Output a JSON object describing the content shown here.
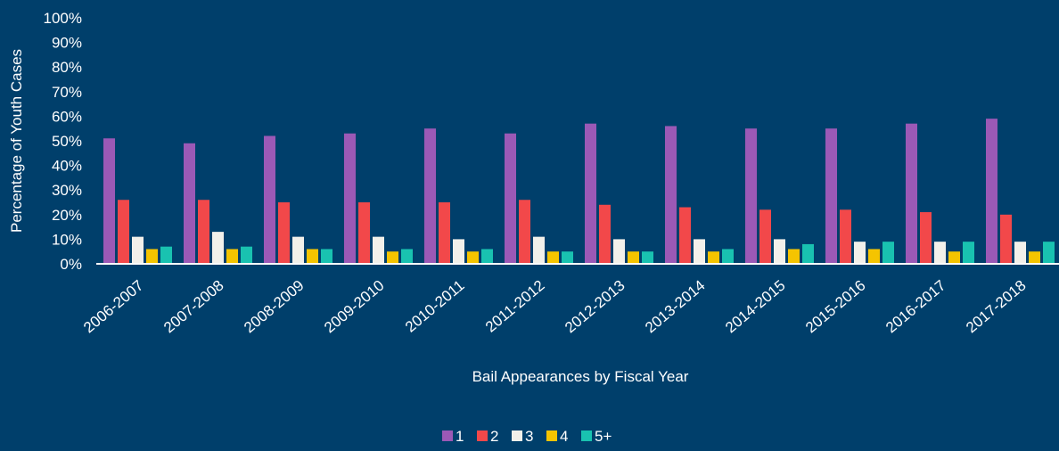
{
  "chart_data": {
    "type": "bar",
    "xlabel": "Bail Appearances by Fiscal Year",
    "ylabel": "Percentage of Youth Cases",
    "ylim": [
      0,
      100
    ],
    "yticks": [
      "0%",
      "10%",
      "20%",
      "30%",
      "40%",
      "50%",
      "60%",
      "70%",
      "80%",
      "90%",
      "100%"
    ],
    "grid": false,
    "legend_position": "bottom",
    "categories": [
      "2006-2007",
      "2007-2008",
      "2008-2009",
      "2009-2010",
      "2010-2011",
      "2011-2012",
      "2012-2013",
      "2013-2014",
      "2014-2015",
      "2015-2016",
      "2016-2017",
      "2017-2018"
    ],
    "series": [
      {
        "name": "1",
        "color": "#9b59b6",
        "values": [
          51,
          49,
          52,
          53,
          55,
          53,
          57,
          56,
          55,
          55,
          57,
          59
        ]
      },
      {
        "name": "2",
        "color": "#f2484a",
        "values": [
          26,
          26,
          25,
          25,
          25,
          26,
          24,
          23,
          22,
          22,
          21,
          20
        ]
      },
      {
        "name": "3",
        "color": "#f2f0ea",
        "values": [
          11,
          13,
          11,
          11,
          10,
          11,
          10,
          10,
          10,
          9,
          9,
          9
        ]
      },
      {
        "name": "4",
        "color": "#f5c400",
        "values": [
          6,
          6,
          6,
          5,
          5,
          5,
          5,
          5,
          6,
          6,
          5,
          5
        ]
      },
      {
        "name": "5+",
        "color": "#19c2b0",
        "values": [
          7,
          7,
          6,
          6,
          6,
          5,
          5,
          6,
          8,
          9,
          9,
          9
        ]
      }
    ]
  }
}
